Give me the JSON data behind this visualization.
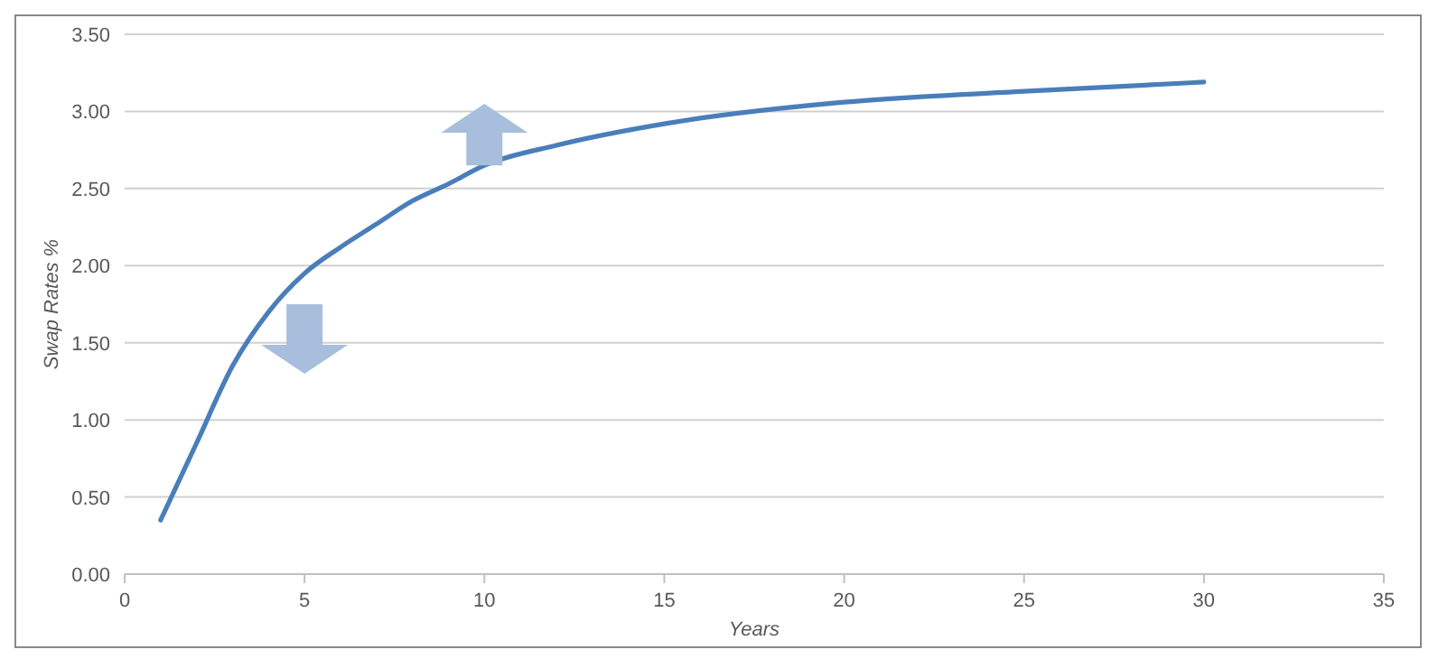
{
  "chart_data": {
    "type": "line",
    "xlabel": "Years",
    "ylabel": "Swap Rates %",
    "x": [
      1,
      2,
      3,
      4,
      5,
      6,
      7,
      8,
      9,
      10,
      12,
      15,
      20,
      25,
      30
    ],
    "series": [
      {
        "color": "#4a7ebb",
        "values": [
          0.35,
          0.85,
          1.35,
          1.7,
          1.95,
          2.12,
          2.27,
          2.42,
          2.53,
          2.65,
          2.78,
          2.92,
          3.06,
          3.13,
          3.19
        ]
      }
    ],
    "xlim": [
      0,
      35
    ],
    "xticks": [
      0,
      5,
      10,
      15,
      20,
      25,
      30,
      35
    ],
    "ylim": [
      0,
      3.5
    ],
    "yticks": [
      {
        "value": 0,
        "label": "0.00"
      },
      {
        "value": 0.5,
        "label": "0.50"
      },
      {
        "value": 1,
        "label": "1.00"
      },
      {
        "value": 1.5,
        "label": "1.50"
      },
      {
        "value": 2,
        "label": "2.00"
      },
      {
        "value": 2.5,
        "label": "2.50"
      },
      {
        "value": 3,
        "label": "3.00"
      },
      {
        "value": 3.5,
        "label": "3.50"
      }
    ],
    "grid": "y",
    "marker": "none",
    "line_style": "solid"
  }
}
